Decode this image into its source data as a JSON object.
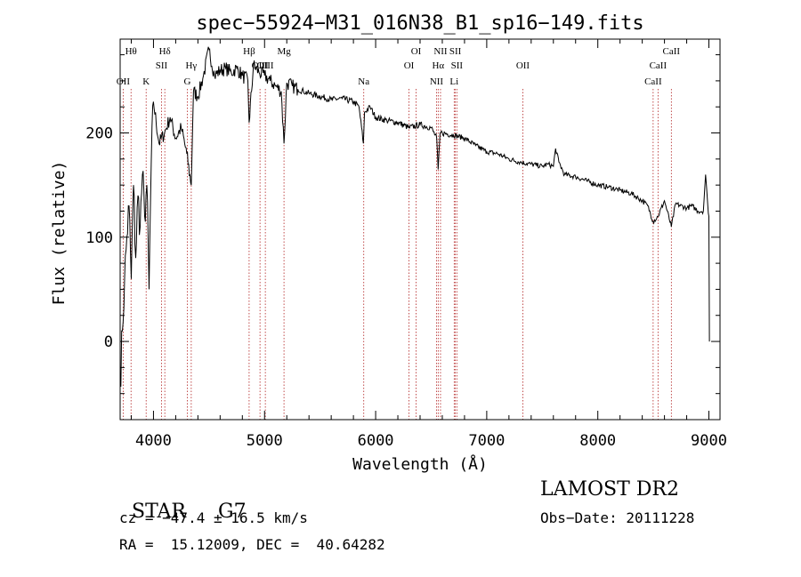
{
  "chart_data": {
    "type": "line",
    "title": "spec−55924−M31_016N38_B1_sp16−149.fits",
    "xlabel": "Wavelength (Å)",
    "ylabel": "Flux (relative)",
    "xlim": [
      3700,
      9100
    ],
    "ylim": [
      -75,
      290
    ],
    "xticks": [
      4000,
      5000,
      6000,
      7000,
      8000,
      9000
    ],
    "yticks": [
      0,
      100,
      200
    ],
    "series": [
      {
        "name": "flux",
        "x": [
          3700,
          3720,
          3740,
          3760,
          3780,
          3800,
          3820,
          3840,
          3860,
          3880,
          3900,
          3920,
          3940,
          3960,
          3980,
          4000,
          4050,
          4100,
          4150,
          4200,
          4250,
          4300,
          4340,
          4360,
          4400,
          4450,
          4500,
          4550,
          4600,
          4650,
          4700,
          4750,
          4800,
          4850,
          4861,
          4900,
          4950,
          5000,
          5050,
          5100,
          5150,
          5175,
          5200,
          5250,
          5300,
          5350,
          5400,
          5500,
          5600,
          5700,
          5800,
          5850,
          5890,
          5900,
          5950,
          6000,
          6100,
          6200,
          6300,
          6400,
          6500,
          6550,
          6563,
          6580,
          6600,
          6700,
          6800,
          6900,
          7000,
          7100,
          7200,
          7300,
          7400,
          7500,
          7550,
          7600,
          7620,
          7650,
          7700,
          7800,
          7900,
          8000,
          8100,
          8200,
          8300,
          8400,
          8450,
          8498,
          8542,
          8600,
          8662,
          8700,
          8800,
          8850,
          8900,
          8950,
          8970,
          8990,
          9000,
          9005
        ],
        "y": [
          -40,
          10,
          60,
          100,
          130,
          60,
          150,
          80,
          140,
          110,
          160,
          120,
          150,
          50,
          170,
          230,
          190,
          200,
          215,
          195,
          205,
          180,
          150,
          240,
          235,
          255,
          280,
          255,
          260,
          262,
          258,
          262,
          255,
          250,
          210,
          265,
          258,
          255,
          250,
          245,
          240,
          190,
          248,
          245,
          242,
          240,
          238,
          235,
          232,
          233,
          230,
          225,
          190,
          220,
          225,
          215,
          212,
          210,
          205,
          208,
          205,
          195,
          165,
          200,
          200,
          198,
          195,
          188,
          182,
          180,
          175,
          172,
          170,
          168,
          170,
          168,
          185,
          172,
          160,
          158,
          154,
          150,
          148,
          145,
          142,
          135,
          130,
          115,
          120,
          135,
          110,
          132,
          128,
          130,
          125,
          125,
          160,
          130,
          120,
          0
        ]
      }
    ],
    "lines": [
      {
        "name": "Hθ",
        "x": 3798,
        "row": 0
      },
      {
        "name": "OII",
        "x": 3727,
        "row": 2
      },
      {
        "name": "K",
        "x": 3934,
        "row": 2
      },
      {
        "name": "Hδ",
        "x": 4102,
        "row": 0
      },
      {
        "name": "SII",
        "x": 4072,
        "row": 1
      },
      {
        "name": "Hγ",
        "x": 4340,
        "row": 1
      },
      {
        "name": "G",
        "x": 4305,
        "row": 2
      },
      {
        "name": "Hβ",
        "x": 4861,
        "row": 0
      },
      {
        "name": "OIII",
        "x": 4959,
        "row": 1
      },
      {
        "name": "OIII",
        "x": 5007,
        "row": 1
      },
      {
        "name": "Mg",
        "x": 5175,
        "row": 0
      },
      {
        "name": "Na",
        "x": 5893,
        "row": 2
      },
      {
        "name": "OI",
        "x": 6364,
        "row": 0
      },
      {
        "name": "OI",
        "x": 6300,
        "row": 1
      },
      {
        "name": "NII",
        "x": 6584,
        "row": 0
      },
      {
        "name": "Hα",
        "x": 6563,
        "row": 1
      },
      {
        "name": "NII",
        "x": 6548,
        "row": 2
      },
      {
        "name": "SII",
        "x": 6717,
        "row": 0
      },
      {
        "name": "SII",
        "x": 6731,
        "row": 1
      },
      {
        "name": "Li",
        "x": 6707,
        "row": 2
      },
      {
        "name": "OII",
        "x": 7325,
        "row": 1
      },
      {
        "name": "CaII",
        "x": 8662,
        "row": 0
      },
      {
        "name": "CaII",
        "x": 8542,
        "row": 1
      },
      {
        "name": "CaII",
        "x": 8498,
        "row": 2
      }
    ]
  },
  "info": {
    "class": "STAR",
    "subclass": "G7",
    "cz": "cz = −47.4 ± 16.5 km/s",
    "radec": "RA =  15.12009, DEC =  40.64282",
    "survey": "LAMOST DR2",
    "obsdate": "Obs−Date: 20111228"
  },
  "colors": {
    "axis": "#000000",
    "line_marker": "#b22222",
    "spectrum": "#000000"
  }
}
